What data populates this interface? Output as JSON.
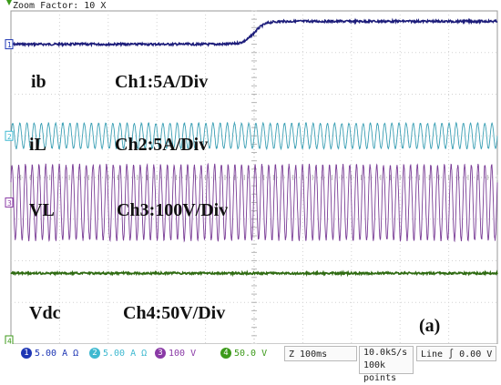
{
  "header": {
    "zoom_label": "Zoom Factor: 10 X"
  },
  "chart_data": {
    "type": "line",
    "title": "",
    "annotations": {
      "traces": [
        {
          "label": "ib",
          "scale": "Ch1:5A/Div"
        },
        {
          "label": "iL",
          "scale": "Ch2:5A/Div"
        },
        {
          "label": "VL",
          "scale": "Ch3:100V/Div"
        },
        {
          "label": "Vdc",
          "scale": "Ch4:50V/Div"
        }
      ],
      "panel_label": "(a)"
    },
    "series": [
      {
        "channel": "1",
        "color": "#1c1c7a",
        "before_level_div": 3.2,
        "after_level_div": 3.75,
        "step_time_div": 5.0
      },
      {
        "channel": "2",
        "color": "#3a9fb4",
        "center_div": 1.0,
        "amplitude_div": 0.3,
        "cycles_on_screen": 68
      },
      {
        "channel": "3",
        "color": "#7a3d96",
        "center_div": -0.6,
        "amplitude_div": 0.9,
        "cycles_on_screen": 72
      },
      {
        "channel": "4",
        "color": "#2f6b12",
        "level_div": -2.3
      }
    ],
    "xlim_div": [
      0,
      10
    ],
    "ylim_div": [
      -4,
      4
    ],
    "grid": true,
    "markers": {
      "left_channels": [
        "1",
        "2",
        "3",
        "4"
      ]
    }
  },
  "footer": {
    "channels": [
      {
        "id": "1",
        "value": "5.00 A",
        "unit": "Ω",
        "color": "#1e36b4"
      },
      {
        "id": "2",
        "value": "5.00 A",
        "unit": "Ω",
        "color": "#3fb9d0"
      },
      {
        "id": "3",
        "value": "100 V",
        "color": "#8a3aa6"
      },
      {
        "id": "4",
        "value": "50.0 V",
        "color": "#3c9a1a"
      }
    ],
    "zoom": "Z 100ms",
    "rate_line1": "10.0kS/s",
    "rate_line2": "100k points",
    "trigger": "Line ∫  0.00 V"
  }
}
